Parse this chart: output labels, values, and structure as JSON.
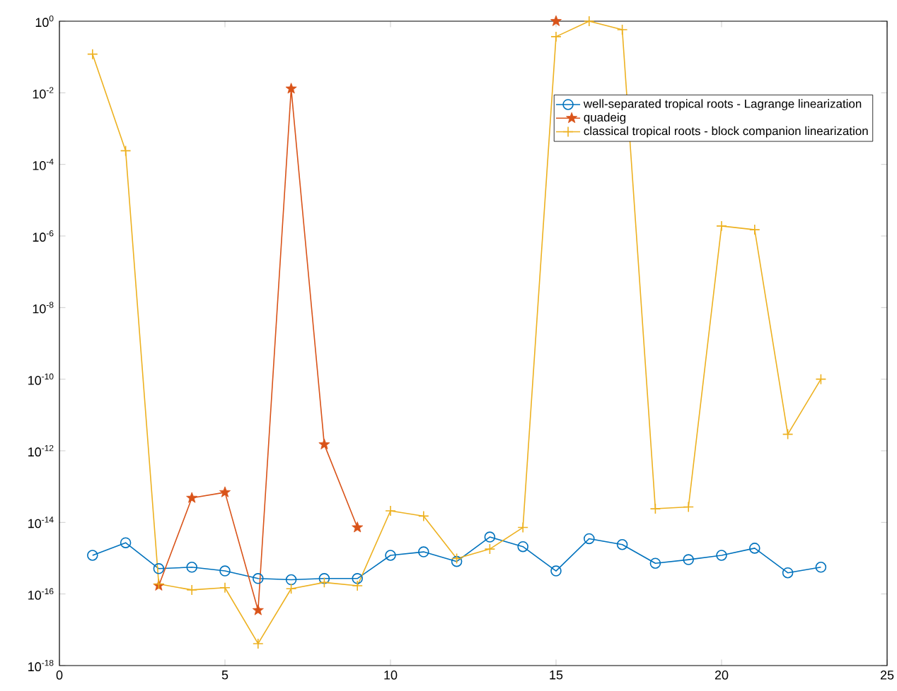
{
  "chart_data": {
    "type": "line",
    "xlim": [
      0,
      25
    ],
    "xticks": [
      0,
      5,
      10,
      15,
      20,
      25
    ],
    "log": "y",
    "ylim": [
      1e-18,
      1
    ],
    "yticks": [
      {
        "value": 1e-18,
        "label": "10$^{-18}$"
      },
      {
        "value": 1e-16,
        "label": "10$^{-16}$"
      },
      {
        "value": 1e-14,
        "label": "10$^{-14}$"
      },
      {
        "value": 1e-12,
        "label": "10$^{-12}$"
      },
      {
        "value": 1e-10,
        "label": "10$^{-10}$"
      },
      {
        "value": 1e-08,
        "label": "10$^{-8}$"
      },
      {
        "value": 1e-06,
        "label": "10$^{-6}$"
      },
      {
        "value": 0.0001,
        "label": "10$^{-4}$"
      },
      {
        "value": 0.01,
        "label": "10$^{-2}$"
      },
      {
        "value": 1,
        "label": "10$^{0}$"
      }
    ],
    "x": [
      1,
      2,
      3,
      4,
      5,
      6,
      7,
      8,
      9,
      10,
      11,
      12,
      13,
      14,
      15,
      16,
      17,
      18,
      19,
      20,
      21,
      22,
      23
    ],
    "legend": "top right",
    "grid": false,
    "series": [
      {
        "name": "well-separated tropical roots - Lagrange linearization",
        "color": "#0072bd",
        "marker": "circle",
        "values": [
          1.2e-15,
          2.7e-15,
          5.1e-16,
          5.6e-16,
          4.4e-16,
          2.7e-16,
          2.5e-16,
          2.7e-16,
          2.7e-16,
          1.2e-15,
          1.5e-15,
          8.1e-16,
          3.9e-15,
          2.1e-15,
          4.4e-16,
          3.5e-15,
          2.4e-15,
          7.2e-16,
          9.1e-16,
          1.2e-15,
          1.9e-15,
          3.9e-16,
          5.6e-16
        ]
      },
      {
        "name": "quadeig",
        "color": "#d95319",
        "marker": "star",
        "values": [
          null,
          null,
          1.7e-16,
          4.8e-14,
          6.9e-14,
          3.5e-17,
          0.013,
          1.5e-12,
          7.2e-15,
          null,
          null,
          null,
          null,
          null,
          1,
          null,
          null,
          null,
          null,
          null,
          null,
          null,
          null
        ]
      },
      {
        "name": "classical tropical roots - block companion linearization",
        "color": "#edb120",
        "marker": "cross",
        "values": [
          0.12,
          0.00024,
          1.9e-16,
          1.3e-16,
          1.5e-16,
          4.1e-18,
          1.4e-16,
          2.1e-16,
          1.7e-16,
          2.1e-14,
          1.5e-14,
          9.8e-16,
          1.8e-15,
          7.2e-15,
          0.37,
          1,
          0.58,
          2.4e-14,
          2.7e-14,
          1.9e-06,
          1.5e-06,
          2.9e-12,
          1e-10
        ]
      }
    ]
  }
}
